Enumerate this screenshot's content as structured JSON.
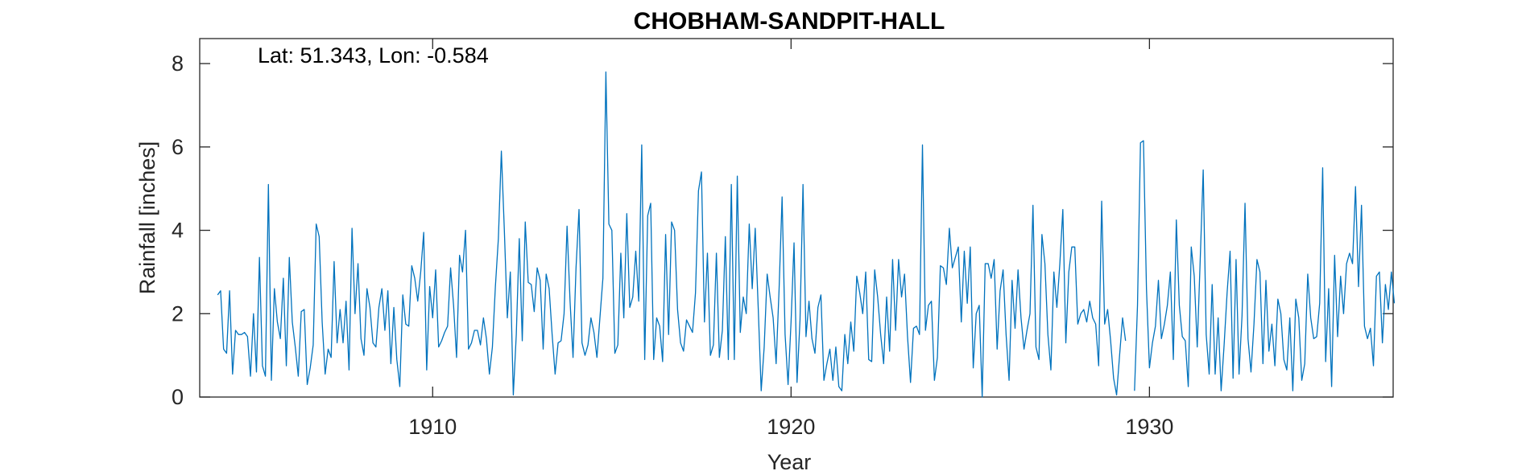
{
  "chart_data": {
    "type": "line",
    "title": "CHOBHAM-SANDPIT-HALL",
    "xlabel": "Year",
    "ylabel": "Rainfall [inches]",
    "annotation": "Lat: 51.343, Lon: -0.584",
    "xlim": [
      1903.5,
      1936.8
    ],
    "ylim": [
      0,
      8.6
    ],
    "x_ticks": [
      1910,
      1920,
      1930
    ],
    "x_tick_labels": [
      "1910",
      "1920",
      "1930"
    ],
    "y_ticks": [
      0,
      2,
      4,
      6,
      8
    ],
    "y_tick_labels": [
      "0",
      "2",
      "4",
      "6",
      "8"
    ],
    "grid": false,
    "legend": "none",
    "line_color": "#0072BD",
    "series": [
      {
        "x_start": 1904.0,
        "x_step": 0.08333333,
        "values": [
          2.45,
          2.55,
          1.15,
          1.05,
          2.55,
          0.55,
          1.6,
          1.5,
          1.5,
          1.55,
          1.45,
          0.5,
          2.0,
          0.6,
          3.35,
          0.75,
          0.5,
          5.1,
          0.4,
          2.6,
          1.8,
          1.4,
          2.85,
          0.75,
          3.35,
          1.8,
          1.2,
          0.5,
          2.05,
          2.1,
          0.3,
          0.7,
          1.25,
          4.15,
          3.85,
          1.8,
          0.55,
          1.15,
          0.95,
          3.25,
          1.3,
          2.1,
          1.3,
          2.3,
          0.65,
          4.05,
          2.0,
          3.2,
          1.4,
          1.0,
          2.6,
          2.15,
          1.3,
          1.2,
          2.15,
          2.6,
          1.6,
          2.55,
          0.8,
          2.15,
          0.9,
          0.25,
          2.45,
          1.75,
          1.7,
          3.15,
          2.85,
          2.3,
          3.0,
          3.95,
          0.65,
          2.65,
          1.9,
          3.05,
          1.2,
          1.35,
          1.55,
          1.7,
          3.1,
          2.2,
          0.95,
          3.4,
          3.0,
          4.0,
          1.15,
          1.3,
          1.6,
          1.6,
          1.25,
          1.9,
          1.4,
          0.55,
          1.2,
          2.65,
          3.8,
          5.9,
          4.0,
          1.9,
          3.0,
          0.05,
          1.5,
          3.8,
          1.35,
          4.2,
          2.75,
          2.7,
          2.05,
          3.1,
          2.8,
          1.15,
          2.95,
          2.6,
          1.5,
          0.55,
          1.3,
          1.35,
          2.0,
          4.1,
          2.3,
          0.95,
          3.1,
          4.5,
          1.3,
          1.0,
          1.25,
          1.9,
          1.55,
          0.95,
          1.9,
          2.85,
          7.8,
          4.15,
          4.0,
          1.05,
          1.25,
          3.45,
          1.9,
          4.4,
          2.15,
          2.4,
          3.5,
          2.3,
          6.05,
          0.9,
          4.35,
          4.65,
          0.9,
          1.9,
          1.7,
          0.85,
          3.9,
          1.5,
          4.2,
          4.0,
          2.1,
          1.3,
          1.1,
          1.85,
          1.7,
          1.55,
          2.5,
          4.95,
          5.4,
          1.8,
          3.45,
          1.0,
          1.25,
          3.45,
          0.95,
          1.6,
          3.85,
          0.9,
          5.1,
          0.9,
          5.3,
          1.55,
          2.4,
          2.0,
          4.15,
          2.6,
          4.05,
          2.15,
          0.15,
          1.2,
          2.95,
          2.4,
          1.9,
          0.8,
          2.6,
          4.8,
          1.5,
          0.3,
          1.8,
          3.7,
          0.35,
          1.85,
          5.1,
          1.45,
          2.3,
          1.4,
          1.05,
          2.15,
          2.45,
          0.4,
          0.8,
          1.15,
          0.4,
          1.2,
          0.25,
          0.15,
          1.5,
          0.8,
          1.8,
          1.1,
          2.9,
          2.5,
          2.0,
          3.0,
          0.9,
          0.85,
          3.05,
          2.4,
          1.5,
          0.8,
          2.4,
          1.1,
          3.3,
          1.6,
          3.3,
          2.4,
          2.95,
          1.45,
          0.35,
          1.65,
          1.7,
          1.5,
          6.05,
          1.6,
          2.2,
          2.3,
          0.4,
          0.95,
          3.15,
          3.1,
          2.7,
          4.05,
          3.1,
          3.35,
          3.6,
          1.8,
          3.5,
          2.25,
          3.6,
          0.7,
          2.0,
          2.2,
          0.0,
          3.2,
          3.2,
          2.85,
          3.3,
          1.15,
          2.55,
          3.05,
          1.5,
          0.4,
          2.8,
          1.65,
          3.05,
          1.9,
          1.15,
          1.6,
          2.0,
          4.6,
          1.2,
          0.9,
          3.9,
          3.2,
          1.5,
          0.65,
          3.0,
          2.15,
          3.2,
          4.5,
          1.3,
          3.0,
          3.6,
          3.6,
          1.75,
          2.0,
          2.1,
          1.8,
          2.3,
          1.9,
          1.75,
          0.75,
          4.7,
          1.75,
          2.1,
          1.35,
          0.45,
          0.05,
          1.0,
          1.9,
          1.35,
          null,
          null,
          0.15,
          2.2,
          6.1,
          6.15,
          2.6,
          0.7,
          1.3,
          1.7,
          2.8,
          1.4,
          1.75,
          2.2,
          3.0,
          0.9,
          4.25,
          2.2,
          1.45,
          1.35,
          0.25,
          3.6,
          2.9,
          1.2,
          3.3,
          5.45,
          1.5,
          0.55,
          2.7,
          0.55,
          1.9,
          0.15,
          1.25,
          2.5,
          3.5,
          0.45,
          3.3,
          0.55,
          1.95,
          4.65,
          1.4,
          0.6,
          1.75,
          3.3,
          3.0,
          0.8,
          2.8,
          1.1,
          1.75,
          0.75,
          2.35,
          2.0,
          0.9,
          0.65,
          1.9,
          0.15,
          2.35,
          1.9,
          0.4,
          0.8,
          2.95,
          1.9,
          1.4,
          1.45,
          2.25,
          5.5,
          0.85,
          2.6,
          0.25,
          3.4,
          1.45,
          2.9,
          2.0,
          3.2,
          3.45,
          3.2,
          5.05,
          2.65,
          4.6,
          1.7,
          1.4,
          1.65,
          0.75,
          2.9,
          3.0,
          1.3,
          2.7,
          2.1,
          3.0,
          2.25
        ]
      }
    ]
  }
}
